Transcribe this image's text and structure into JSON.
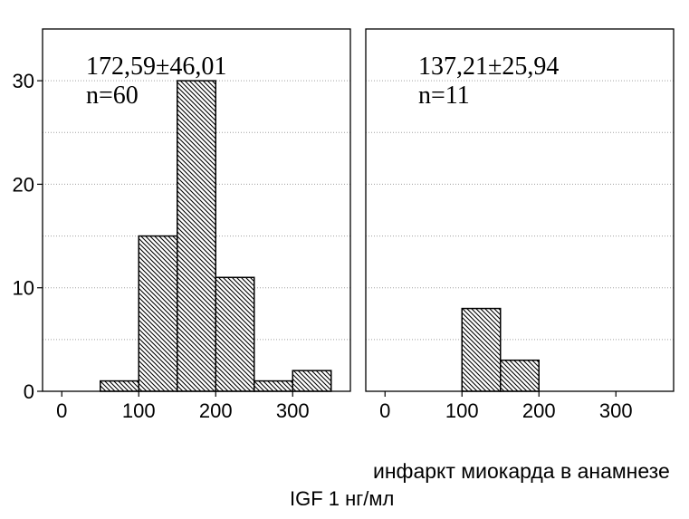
{
  "chart_data": {
    "type": "bar",
    "xlabel": "IGF 1 нг/мл",
    "xlim": [
      -25,
      375
    ],
    "ylim": [
      0,
      35
    ],
    "xticks": [
      0,
      100,
      200,
      300
    ],
    "yticks": [
      0,
      10,
      20,
      30
    ],
    "grid": true,
    "grid_step": 5,
    "bar_fill": "diagonal-hatch",
    "panels": [
      {
        "stats": "172,59±46,01",
        "n": "n=60",
        "bins": [
          {
            "x0": 50,
            "x1": 100,
            "count": 1
          },
          {
            "x0": 100,
            "x1": 150,
            "count": 15
          },
          {
            "x0": 150,
            "x1": 200,
            "count": 30
          },
          {
            "x0": 200,
            "x1": 250,
            "count": 11
          },
          {
            "x0": 250,
            "x1": 300,
            "count": 1
          },
          {
            "x0": 300,
            "x1": 350,
            "count": 2
          }
        ]
      },
      {
        "label": "инфаркт миокарда в анамнезе",
        "stats": "137,21±25,94",
        "n": "n=11",
        "bins": [
          {
            "x0": 100,
            "x1": 150,
            "count": 8
          },
          {
            "x0": 150,
            "x1": 200,
            "count": 3
          }
        ]
      }
    ]
  },
  "colors": {
    "background": "#ffffff",
    "frame": "#000000",
    "bar_edge": "#000000",
    "hatch": "#000000",
    "grid": "#a0a0a0"
  }
}
